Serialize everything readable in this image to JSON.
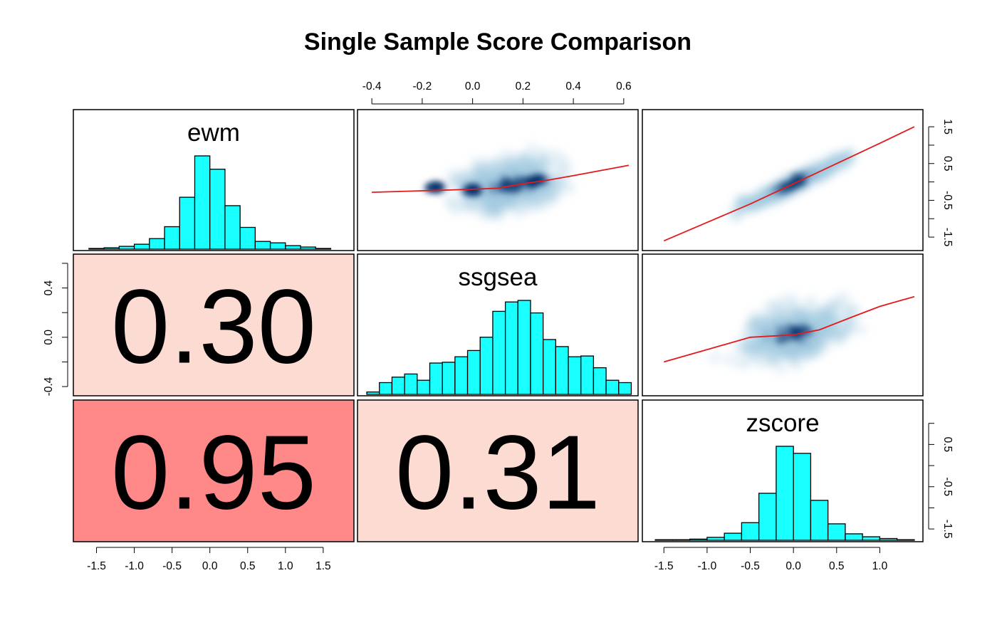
{
  "chart_data": {
    "type": "scatter-matrix",
    "title": "Single Sample Score Comparison",
    "variables": [
      "ewm",
      "ssgsea",
      "zscore"
    ],
    "colors": {
      "histogram_fill": "#1AFFFF",
      "smooth_line": "#E31A1C",
      "density_dark": "#08306B",
      "corr_high": "#FF8888",
      "corr_low": "#FCDBD2",
      "frame": "#000000"
    },
    "axes": {
      "ewm": {
        "range": [
          -1.75,
          1.85
        ],
        "ticks": [
          -1.5,
          -1.0,
          -0.5,
          0.0,
          0.5,
          1.0,
          1.5
        ],
        "tick_labels": [
          "-1.5",
          "-1.0",
          "-0.5",
          "0.0",
          "0.5",
          "1.0",
          "1.5"
        ]
      },
      "ssgsea": {
        "range": [
          -0.44,
          0.64
        ],
        "ticks": [
          -0.4,
          -0.2,
          0.0,
          0.2,
          0.4,
          0.6
        ],
        "tick_labels": [
          "-0.4",
          "-0.2",
          "0.0",
          "0.2",
          "0.4",
          "0.6"
        ],
        "left_ticks": [
          -0.4,
          -0.2,
          0.0,
          0.2,
          0.4,
          0.6
        ],
        "left_tick_labels": [
          "-0.4",
          "",
          "0.0",
          "",
          "0.4",
          ""
        ]
      },
      "zscore": {
        "range": [
          -1.7,
          1.45
        ],
        "ticks": [
          -1.5,
          -1.0,
          -0.5,
          0.0,
          0.5,
          1.0
        ],
        "tick_labels": [
          "-1.5",
          "-1.0",
          "-0.5",
          "0.0",
          "0.5",
          "1.0"
        ],
        "right_ticks": [
          -1.5,
          -1.0,
          -0.5,
          0.0,
          0.5,
          1.0,
          1.5
        ],
        "right_tick_labels_top": [
          "-1.5",
          "",
          "-0.5",
          "",
          "0.5",
          "",
          "1.5"
        ],
        "right_tick_labels_bottom": [
          "-1.5",
          "",
          "-0.5",
          "",
          "0.5",
          "",
          ""
        ]
      }
    },
    "histograms": {
      "ewm": {
        "breaks": [
          -1.6,
          -1.4,
          -1.2,
          -1.0,
          -0.8,
          -0.6,
          -0.4,
          -0.2,
          0.0,
          0.2,
          0.4,
          0.6,
          0.8,
          1.0,
          1.2,
          1.4,
          1.6,
          1.8
        ],
        "counts": [
          1,
          2,
          4,
          7,
          15,
          32,
          74,
          133,
          114,
          62,
          31,
          11,
          9,
          5,
          3,
          1,
          0
        ]
      },
      "ssgsea": {
        "breaks": [
          -0.42,
          -0.37,
          -0.32,
          -0.27,
          -0.22,
          -0.17,
          -0.12,
          -0.07,
          -0.02,
          0.03,
          0.08,
          0.13,
          0.18,
          0.23,
          0.28,
          0.33,
          0.38,
          0.43,
          0.48,
          0.53,
          0.58,
          0.63
        ],
        "counts": [
          3,
          15,
          22,
          26,
          18,
          40,
          41,
          48,
          56,
          73,
          106,
          118,
          120,
          104,
          70,
          61,
          48,
          49,
          34,
          18,
          15,
          1
        ]
      },
      "zscore": {
        "breaks": [
          -1.6,
          -1.4,
          -1.2,
          -1.0,
          -0.8,
          -0.6,
          -0.4,
          -0.2,
          0.0,
          0.2,
          0.4,
          0.6,
          0.8,
          1.0,
          1.2,
          1.4
        ],
        "counts": [
          1,
          1,
          2,
          5,
          12,
          30,
          80,
          160,
          148,
          68,
          28,
          11,
          6,
          3,
          1
        ]
      }
    },
    "correlations": [
      {
        "x": "ewm",
        "y": "ssgsea",
        "value": "0.30"
      },
      {
        "x": "ewm",
        "y": "zscore",
        "value": "0.95"
      },
      {
        "x": "ssgsea",
        "y": "zscore",
        "value": "0.31"
      }
    ],
    "scatter_panels": [
      {
        "x": "ssgsea",
        "y": "ewm",
        "smooth": [
          [
            -0.4,
            -0.28
          ],
          [
            -0.2,
            -0.24
          ],
          [
            0.0,
            -0.2
          ],
          [
            0.1,
            -0.17
          ],
          [
            0.2,
            -0.05
          ],
          [
            0.3,
            0.05
          ],
          [
            0.4,
            0.17
          ],
          [
            0.5,
            0.3
          ],
          [
            0.62,
            0.45
          ]
        ],
        "density": [
          {
            "x": 0.15,
            "y": -0.05,
            "w": 0.06
          },
          {
            "x": 0.25,
            "y": 0.1,
            "w": 0.03
          },
          {
            "x": 0.0,
            "y": -0.25,
            "w": 0.025
          },
          {
            "x": -0.15,
            "y": 0.05,
            "w": 0.025
          }
        ]
      },
      {
        "x": "zscore",
        "y": "ewm",
        "smooth": [
          [
            -1.5,
            -1.6
          ],
          [
            -1.0,
            -1.1
          ],
          [
            -0.5,
            -0.6
          ],
          [
            0.0,
            -0.05
          ],
          [
            0.5,
            0.5
          ],
          [
            1.0,
            1.05
          ],
          [
            1.4,
            1.5
          ]
        ],
        "density": [
          {
            "x": 0.0,
            "y": 0.0,
            "w": 0.05
          }
        ]
      },
      {
        "x": "zscore",
        "y": "ssgsea",
        "smooth": [
          [
            -1.5,
            -0.2
          ],
          [
            -1.0,
            -0.1
          ],
          [
            -0.5,
            0.0
          ],
          [
            0.0,
            0.02
          ],
          [
            0.3,
            0.06
          ],
          [
            0.7,
            0.17
          ],
          [
            1.0,
            0.25
          ],
          [
            1.4,
            0.33
          ]
        ],
        "density": [
          {
            "x": 0.0,
            "y": 0.05,
            "w": 0.06
          }
        ]
      }
    ]
  }
}
